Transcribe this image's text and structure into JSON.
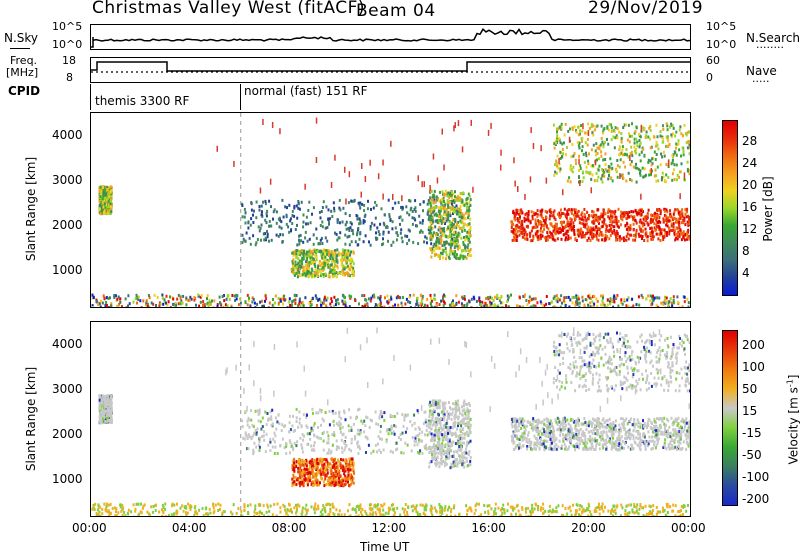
{
  "header": {
    "station": "Christmas Valley West (fitACF)",
    "beam": "Beam 04",
    "date": "29/Nov/2019"
  },
  "panels": {
    "nsky": {
      "left_label": "N.Sky",
      "left_ticks": [
        "10^5",
        "10^0"
      ],
      "right_ticks": [
        "10^5",
        "10^0"
      ],
      "right_label": "N.Search",
      "right_legend": "........"
    },
    "freq": {
      "left_label_1": "Freq.",
      "left_label_2": "[MHz]",
      "left_ticks": [
        "18",
        "8"
      ],
      "right_ticks": [
        "60",
        "0"
      ],
      "right_label": "Nave",
      "right_legend": "....."
    },
    "cpid": {
      "label": "CPID",
      "segments": [
        "themis 3300 RF",
        "normal (fast) 151 RF"
      ]
    }
  },
  "chart_data": [
    {
      "type": "heatmap",
      "name": "power",
      "ylabel": "Slant Range [km]",
      "y_ticks": [
        "1000",
        "2000",
        "3000",
        "4000"
      ],
      "ylim": [
        200,
        4500
      ],
      "colorbar": {
        "label": "Power [dB]",
        "ticks": [
          "28",
          "24",
          "20",
          "16",
          "12",
          "8",
          "4"
        ],
        "range": [
          0,
          32
        ],
        "colors": [
          "#0a1bd6",
          "#22409a",
          "#3a6f7a",
          "#3f8a5a",
          "#39a833",
          "#9bd62a",
          "#f0d020",
          "#f5a020",
          "#f06a10",
          "#e82a0a",
          "#e00000"
        ]
      },
      "regions": [
        {
          "t": [
            0.3,
            0.8
          ],
          "r": [
            2300,
            2900
          ],
          "level": "mid"
        },
        {
          "t": [
            6.0,
            14.8
          ],
          "r": [
            1600,
            2600
          ],
          "level": "low"
        },
        {
          "t": [
            8.0,
            10.5
          ],
          "r": [
            900,
            1500
          ],
          "level": "mid"
        },
        {
          "t": [
            13.5,
            15.2
          ],
          "r": [
            1300,
            2800
          ],
          "level": "mid"
        },
        {
          "t": [
            16.8,
            24.0
          ],
          "r": [
            1700,
            2400
          ],
          "level": "high"
        },
        {
          "t": [
            18.5,
            24.0
          ],
          "r": [
            3000,
            4300
          ],
          "level": "mid"
        },
        {
          "t": [
            0.0,
            24.0
          ],
          "r": [
            200,
            500
          ],
          "level": "ground"
        }
      ]
    },
    {
      "type": "heatmap",
      "name": "velocity",
      "ylabel": "Slant Range [km]",
      "y_ticks": [
        "1000",
        "2000",
        "3000",
        "4000"
      ],
      "ylim": [
        200,
        4500
      ],
      "colorbar": {
        "label": "Velocity [m s^-1]",
        "ticks": [
          "200",
          "100",
          "50",
          "15",
          "-15",
          "-50",
          "-100",
          "-200"
        ],
        "range": [
          -250,
          250
        ],
        "colors": [
          "#1a2ac8",
          "#2a4aa0",
          "#3a7f60",
          "#39a833",
          "#7fd040",
          "#c8c8c8",
          "#f0b020",
          "#f07a10",
          "#e83a0a",
          "#e00000"
        ]
      },
      "xlabel": "Time UT",
      "x_ticks": [
        "00:00",
        "04:00",
        "08:00",
        "12:00",
        "16:00",
        "20:00",
        "00:00"
      ]
    }
  ]
}
